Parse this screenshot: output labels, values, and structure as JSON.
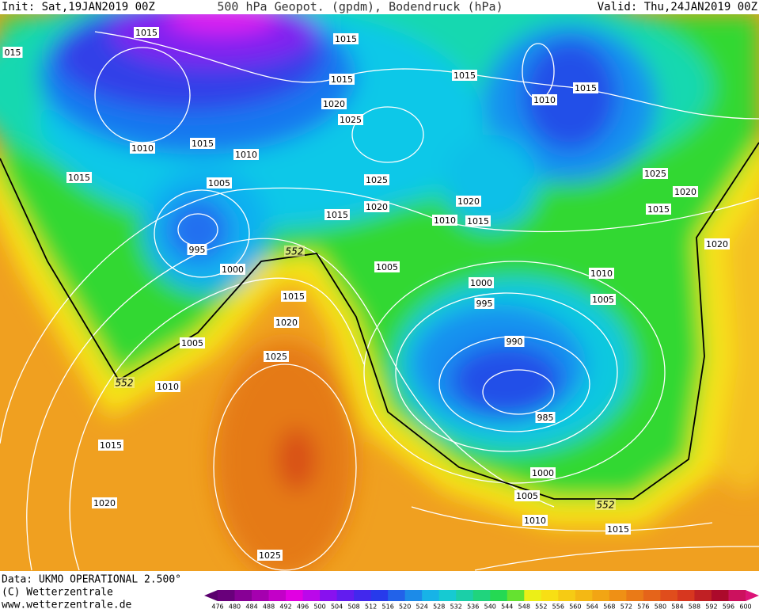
{
  "header": {
    "init": "Init: Sat,19JAN2019 00Z",
    "title": "500 hPa Geopot. (gpdm), Bodendruck (hPa)",
    "valid": "Valid: Thu,24JAN2019 00Z"
  },
  "map": {
    "isobar_labels": [
      "1015",
      "015",
      "1015",
      "1015",
      "1015",
      "1010",
      "1015",
      "1020",
      "1025",
      "1010",
      "1015",
      "1010",
      "1025",
      "1020",
      "1015",
      "1005",
      "1025",
      "1020",
      "1015",
      "1020",
      "1010",
      "1015",
      "1015",
      "1020",
      "995",
      "1000",
      "1005",
      "1010",
      "1000",
      "1015",
      "1005",
      "995",
      "1020",
      "990",
      "1005",
      "1025",
      "1010",
      "985",
      "1015",
      "1000",
      "1005",
      "1020",
      "1010",
      "1015",
      "1025"
    ],
    "contour_labels": [
      "552",
      "552",
      "552"
    ]
  },
  "footer": {
    "source": "Data: UKMO OPERATIONAL 2.500°",
    "copyright": "(C) Wetterzentrale",
    "url": "www.wetterzentrale.de"
  },
  "scale": {
    "labels": [
      476,
      480,
      484,
      488,
      492,
      496,
      500,
      504,
      508,
      512,
      516,
      520,
      524,
      528,
      532,
      536,
      540,
      544,
      548,
      552,
      556,
      560,
      564,
      568,
      572,
      576,
      580,
      584,
      588,
      592,
      596,
      600
    ]
  }
}
